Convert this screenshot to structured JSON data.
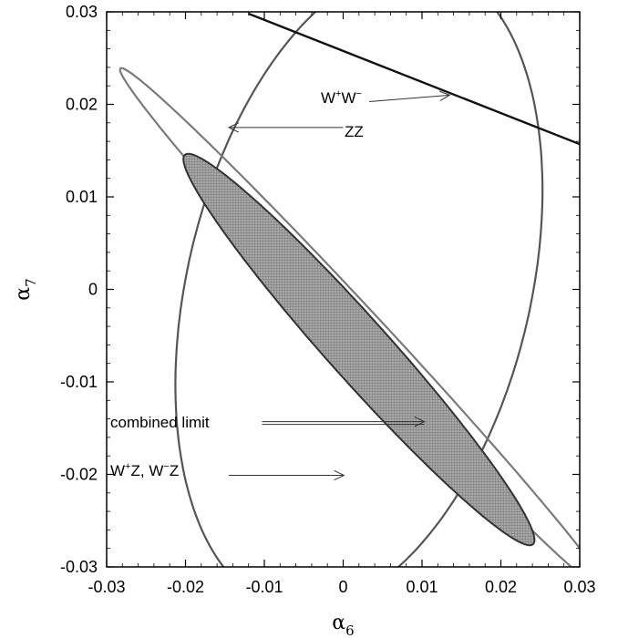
{
  "chart_data": {
    "type": "line",
    "xlabel": "α6",
    "xlabel_base": "α",
    "xlabel_sub": "6",
    "ylabel": "α7",
    "ylabel_base": "α",
    "ylabel_sub": "7",
    "xlim": [
      -0.03,
      0.03
    ],
    "ylim": [
      -0.03,
      0.03
    ],
    "xticks": [
      -0.03,
      -0.02,
      -0.01,
      0,
      0.01,
      0.02,
      0.03
    ],
    "yticks": [
      -0.03,
      -0.02,
      -0.01,
      0,
      0.01,
      0.02,
      0.03
    ],
    "xtick_labels": [
      "-0.03",
      "-0.02",
      "-0.01",
      "0",
      "0.01",
      "0.02",
      "0.03"
    ],
    "ytick_labels": [
      "-0.03",
      "-0.02",
      "-0.01",
      "0",
      "0.01",
      "0.02",
      "0.03"
    ],
    "grid": false,
    "series": [
      {
        "name": "W⁺Z, W⁻Z",
        "kind": "ellipse",
        "center": [
          0.002,
          0.0002
        ],
        "semi_major": 0.036,
        "semi_minor": 0.0215,
        "angle_deg": 72,
        "color": "#555555"
      },
      {
        "name": "ZZ",
        "kind": "band",
        "center": [
          0.0027,
          -0.0045
        ],
        "semi_major": 0.042,
        "semi_minor": 0.0022,
        "angle_deg": -42.5,
        "color": "#7a7a7a"
      },
      {
        "name": "W⁺W⁻",
        "kind": "line",
        "x": [
          -0.012,
          0.03
        ],
        "y": [
          0.0298,
          0.0157
        ],
        "color": "#111111"
      },
      {
        "name": "combined limit",
        "kind": "ellipse-filled",
        "center": [
          0.002,
          -0.0065
        ],
        "semi_major": 0.0305,
        "semi_minor": 0.0036,
        "angle_deg": -43.5,
        "color": "#333333",
        "fill": "#9a9a9a"
      }
    ],
    "annotations": [
      {
        "text": "W",
        "sup": "+",
        "text2": "W",
        "sup2": "−",
        "target": [
          0.0135,
          0.021
        ],
        "from": [
          0.0033,
          0.0203
        ]
      },
      {
        "text": "ZZ",
        "target": [
          -0.0145,
          0.0175
        ],
        "from": [
          0.0,
          0.0175
        ]
      },
      {
        "text": "combined limit",
        "target": [
          0.0103,
          -0.0143
        ],
        "from": [
          -0.0103,
          -0.0143
        ]
      },
      {
        "text": "W",
        "sup": "+",
        "text2": "Z, W",
        "sup2": "−",
        "text3": "Z",
        "target": [
          0.0001,
          -0.0201
        ],
        "from": [
          -0.0145,
          -0.0201
        ]
      }
    ]
  }
}
